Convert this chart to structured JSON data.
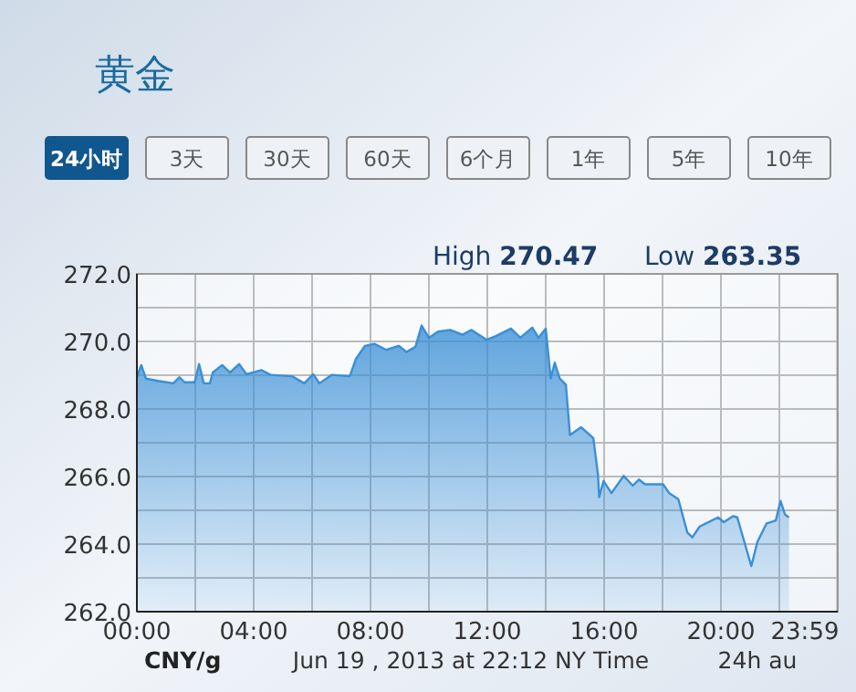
{
  "chart_data": {
    "type": "area",
    "title": "黄金",
    "annotations": [
      "24小时",
      "3天",
      "30天",
      "60天",
      "6个月",
      "1年",
      "5年",
      "10年",
      "High 270.47",
      "Low 263.35",
      "CNY/g",
      "Jun 19 , 2013 at 22:12 NY Time",
      "24h au"
    ],
    "series": [
      {
        "color": "#3a8fd6",
        "x": [
          0,
          0.15,
          0.31,
          0.73,
          1.25,
          1.46,
          1.63,
          1.98,
          2.13,
          2.29,
          2.5,
          2.6,
          2.92,
          3.19,
          3.5,
          3.75,
          4.27,
          4.58,
          5.31,
          5.73,
          6.04,
          6.25,
          6.67,
          7.29,
          7.5,
          7.81,
          8.13,
          8.54,
          8.96,
          9.23,
          9.54,
          9.75,
          10.0,
          10.31,
          10.73,
          11.15,
          11.46,
          11.98,
          12.29,
          12.81,
          13.13,
          13.54,
          13.75,
          14.0,
          14.17,
          14.31,
          14.48,
          14.69,
          14.83,
          15.21,
          15.63,
          15.79,
          15.83,
          15.98,
          16.25,
          16.67,
          16.98,
          17.19,
          17.4,
          18.02,
          18.23,
          18.54,
          18.85,
          19.02,
          19.27,
          19.69,
          19.9,
          20.1,
          20.42,
          20.56,
          20.83,
          21.04,
          21.25,
          21.56,
          21.88,
          22.04,
          22.19,
          22.33
        ],
        "values": [
          268.94,
          269.3,
          268.9,
          268.83,
          268.76,
          268.94,
          268.79,
          268.79,
          269.33,
          268.76,
          268.76,
          269.08,
          269.3,
          269.08,
          269.33,
          269.03,
          269.15,
          269.01,
          268.97,
          268.76,
          269.03,
          268.76,
          269.01,
          268.97,
          269.48,
          269.87,
          269.93,
          269.75,
          269.87,
          269.69,
          269.84,
          270.47,
          270.11,
          270.29,
          270.34,
          270.2,
          270.34,
          270.05,
          270.16,
          270.38,
          270.11,
          270.41,
          270.11,
          270.38,
          268.9,
          269.37,
          268.9,
          268.72,
          267.23,
          267.46,
          267.14,
          266.05,
          265.39,
          265.87,
          265.51,
          266.02,
          265.73,
          265.91,
          265.77,
          265.77,
          265.51,
          265.33,
          264.34,
          264.2,
          264.52,
          264.7,
          264.79,
          264.65,
          264.83,
          264.79,
          263.98,
          263.35,
          264.07,
          264.61,
          264.7,
          265.28,
          264.88,
          264.79
        ]
      }
    ],
    "xlim": [
      0,
      24
    ],
    "xticks": [
      {
        "value": 0,
        "label": "00:00"
      },
      {
        "value": 2,
        "label": null
      },
      {
        "value": 4,
        "label": "04:00"
      },
      {
        "value": 6,
        "label": null
      },
      {
        "value": 8,
        "label": "08:00"
      },
      {
        "value": 10,
        "label": null
      },
      {
        "value": 12,
        "label": "12:00"
      },
      {
        "value": 14,
        "label": null
      },
      {
        "value": 16,
        "label": "16:00"
      },
      {
        "value": 18,
        "label": null
      },
      {
        "value": 20,
        "label": "20:00"
      },
      {
        "value": 22,
        "label": null
      },
      {
        "value": 23.98,
        "label": "23:59"
      }
    ],
    "ylim": [
      262,
      272
    ],
    "yticks": [
      {
        "value": 262,
        "label": "262.0"
      },
      {
        "value": 263,
        "label": null
      },
      {
        "value": 264,
        "label": "264.0"
      },
      {
        "value": 265,
        "label": null
      },
      {
        "value": 266,
        "label": "266.0"
      },
      {
        "value": 267,
        "label": null
      },
      {
        "value": 268,
        "label": "268.0"
      },
      {
        "value": 269,
        "label": null
      },
      {
        "value": 270,
        "label": "270.0"
      },
      {
        "value": 271,
        "label": null
      },
      {
        "value": 272,
        "label": "272.0"
      }
    ],
    "grid": true
  }
}
